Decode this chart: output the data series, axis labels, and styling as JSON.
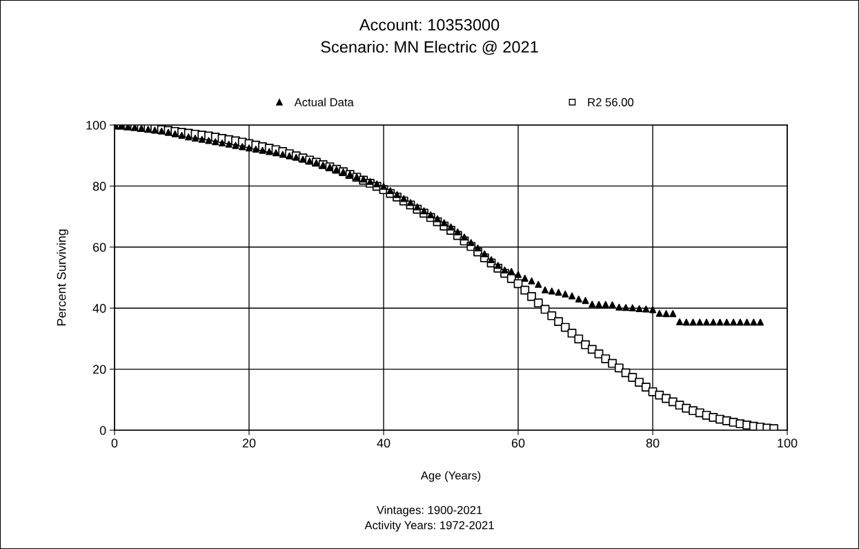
{
  "chart_data": {
    "type": "scatter",
    "title": "Account: 10353000",
    "subtitle": "Scenario: MN Electric @ 2021",
    "xlabel": "Age (Years)",
    "ylabel": "Percent Surviving",
    "annotations": [
      "Vintages: 1900-2021",
      "Activity Years: 1972-2021"
    ],
    "xlim": [
      0,
      100
    ],
    "xticks": [
      0,
      20,
      40,
      60,
      80,
      100
    ],
    "ylim": [
      0,
      100
    ],
    "yticks": [
      0,
      20,
      40,
      60,
      80,
      100
    ],
    "grid": true,
    "legend": "top",
    "series": [
      {
        "name": "Actual Data",
        "color": "#000000",
        "marker": "triangle",
        "x": [
          0,
          1,
          2,
          3,
          4,
          5,
          6,
          7,
          8,
          9,
          10,
          11,
          12,
          13,
          14,
          15,
          16,
          17,
          18,
          19,
          20,
          21,
          22,
          23,
          24,
          25,
          26,
          27,
          28,
          29,
          30,
          31,
          32,
          33,
          34,
          35,
          36,
          37,
          38,
          39,
          40,
          41,
          42,
          43,
          44,
          45,
          46,
          47,
          48,
          49,
          50,
          51,
          52,
          53,
          54,
          55,
          56,
          57,
          58,
          59,
          60,
          61,
          62,
          63,
          64,
          65,
          66,
          67,
          68,
          69,
          70,
          71,
          72,
          73,
          74,
          75,
          76,
          77,
          78,
          79,
          80,
          81,
          82,
          83,
          84,
          85,
          86,
          87,
          88,
          89,
          90,
          91,
          92,
          93,
          94,
          95,
          96
        ],
        "values": [
          100,
          99.8,
          99.5,
          99.2,
          98.9,
          98.6,
          98.3,
          98.0,
          97.6,
          97.1,
          96.6,
          96.1,
          95.7,
          95.3,
          94.9,
          94.5,
          94.1,
          93.7,
          93.3,
          92.9,
          92.5,
          92.1,
          91.7,
          91.3,
          90.9,
          90.4,
          89.9,
          89.4,
          88.8,
          88.2,
          87.6,
          86.9,
          86.2,
          85.4,
          84.6,
          83.8,
          83.0,
          82.3,
          81.5,
          80.7,
          79.9,
          78.5,
          77.2,
          75.9,
          74.6,
          73.2,
          71.9,
          70.6,
          69.3,
          68.0,
          66.6,
          65.0,
          63.3,
          61.5,
          59.7,
          57.8,
          55.9,
          54.0,
          52.5,
          52.0,
          51.0,
          49.8,
          48.9,
          47.8,
          46.0,
          45.6,
          45.2,
          44.6,
          44.0,
          43.0,
          42.5,
          41.3,
          41.2,
          41.2,
          41.1,
          40.3,
          40.2,
          40.1,
          39.8,
          39.7,
          39.5,
          38.3,
          38.2,
          38.2,
          35.5,
          35.4,
          35.4,
          35.4,
          35.4,
          35.4,
          35.4,
          35.4,
          35.4,
          35.4,
          35.4,
          35.4,
          35.4
        ]
      },
      {
        "name": "R2 56.00",
        "color": "#000000",
        "marker": "square",
        "x": [
          0,
          1,
          2,
          3,
          4,
          5,
          6,
          7,
          8,
          9,
          10,
          11,
          12,
          13,
          14,
          15,
          16,
          17,
          18,
          19,
          20,
          21,
          22,
          23,
          24,
          25,
          26,
          27,
          28,
          29,
          30,
          31,
          32,
          33,
          34,
          35,
          36,
          37,
          38,
          39,
          40,
          41,
          42,
          43,
          44,
          45,
          46,
          47,
          48,
          49,
          50,
          51,
          52,
          53,
          54,
          55,
          56,
          57,
          58,
          59,
          60,
          61,
          62,
          63,
          64,
          65,
          66,
          67,
          68,
          69,
          70,
          71,
          72,
          73,
          74,
          75,
          76,
          77,
          78,
          79,
          80,
          81,
          82,
          83,
          84,
          85,
          86,
          87,
          88,
          89,
          90,
          91,
          92,
          93,
          94,
          95,
          96,
          97,
          98
        ],
        "values": [
          100,
          99.9,
          99.7,
          99.5,
          99.2,
          99.0,
          98.8,
          98.5,
          98.2,
          97.9,
          97.6,
          97.3,
          97.0,
          96.7,
          96.4,
          96.0,
          95.6,
          95.2,
          94.8,
          94.4,
          93.9,
          93.4,
          92.9,
          92.4,
          91.9,
          91.3,
          90.6,
          89.9,
          89.2,
          88.5,
          87.8,
          87.0,
          86.3,
          85.5,
          84.7,
          83.8,
          82.9,
          81.9,
          80.9,
          79.9,
          78.8,
          77.6,
          76.4,
          75.1,
          73.8,
          72.4,
          71.1,
          69.7,
          68.3,
          66.9,
          65.5,
          63.8,
          62.0,
          60.2,
          58.4,
          56.5,
          54.8,
          53.1,
          51.4,
          49.7,
          48.0,
          45.9,
          43.8,
          41.7,
          39.6,
          37.5,
          35.6,
          33.7,
          31.8,
          29.9,
          28.0,
          26.5,
          25.0,
          23.4,
          21.9,
          20.4,
          18.8,
          17.3,
          15.7,
          14.1,
          12.6,
          11.5,
          10.4,
          9.3,
          8.2,
          7.2,
          6.4,
          5.7,
          4.9,
          4.2,
          3.6,
          3.1,
          2.6,
          2.1,
          1.7,
          1.3,
          1.0,
          0.7,
          0.5
        ]
      }
    ]
  }
}
